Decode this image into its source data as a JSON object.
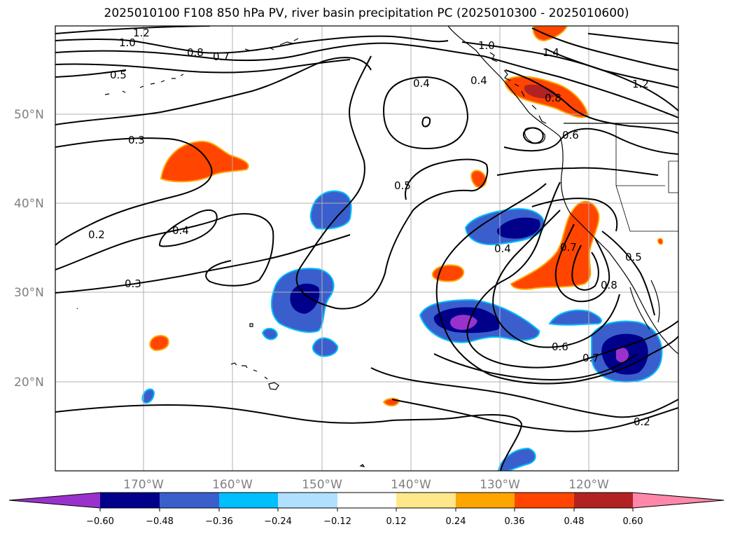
{
  "title": "2025010100 F108 850 hPa PV, river basin precipitation PC (2025010300 - 2025010600)",
  "map": {
    "lat_ticks": [
      "50°N",
      "40°N",
      "30°N",
      "20°N"
    ],
    "lon_ticks": [
      "170°W",
      "160°W",
      "150°W",
      "140°W",
      "130°W",
      "120°W"
    ],
    "contour_labels": [
      "1.2",
      "1.0",
      "0.8",
      "0.7",
      "0.5",
      "0.4",
      "0.3",
      "0.2",
      "0.4",
      "0.3",
      "1.0",
      "0.4",
      "0.5",
      "1.4",
      "0.8",
      "1.2",
      "0.6",
      "0.4",
      "0.7",
      "0.5",
      "0.8",
      "0.6",
      "0.7",
      "0.2"
    ],
    "line_color": "#000000",
    "grid": true
  },
  "colorbar": {
    "ticks": [
      "−0.60",
      "−0.48",
      "−0.36",
      "−0.24",
      "−0.12",
      "0.12",
      "0.24",
      "0.36",
      "0.48",
      "0.60"
    ],
    "colors": [
      "#9932cc",
      "#00008b",
      "#3a5fcd",
      "#00bfff",
      "#b0e0ff",
      "#ffffff",
      "#ffe88a",
      "#ffa500",
      "#ff4500",
      "#b22222",
      "#ff88aa"
    ]
  }
}
